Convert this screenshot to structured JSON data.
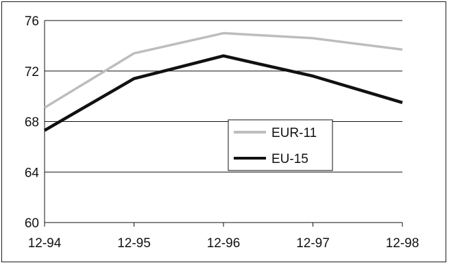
{
  "chart_data": {
    "type": "line",
    "title": "",
    "xlabel": "",
    "ylabel": "",
    "categories": [
      "12-94",
      "12-95",
      "12-96",
      "12-97",
      "12-98"
    ],
    "ylim": [
      60,
      76
    ],
    "yticks": [
      60,
      64,
      68,
      72,
      76
    ],
    "grid": true,
    "legend_position": "center-right",
    "series": [
      {
        "name": "EUR-11",
        "color": "#bdbdbd",
        "values": [
          69.1,
          73.4,
          75.0,
          74.6,
          73.7
        ]
      },
      {
        "name": "EU-15",
        "color": "#111111",
        "values": [
          67.3,
          71.4,
          73.2,
          71.6,
          69.5
        ]
      }
    ]
  }
}
